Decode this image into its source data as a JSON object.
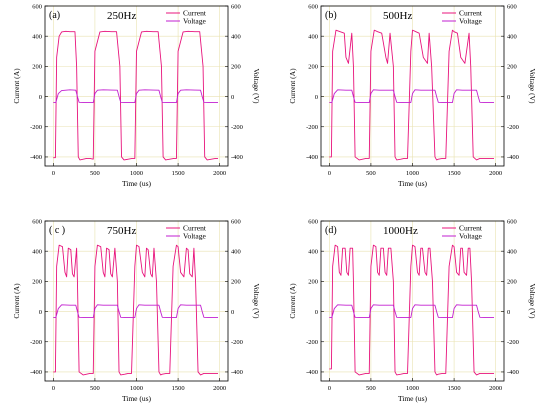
{
  "colors": {
    "current": "#e8147c",
    "voltage": "#c21fd0",
    "grid": "#e9e2b0",
    "axis": "#000000"
  },
  "chart_data": [
    {
      "type": "line",
      "panel_tag": "(a)",
      "frequency": "250Hz",
      "xlabel": "Time (us)",
      "ylabel": "Current (A)",
      "y2label": "Voltage (V)",
      "xlim": [
        -100,
        2100
      ],
      "ylim": [
        -460,
        600
      ],
      "y2lim": [
        -460,
        600
      ],
      "xticks": [
        "0",
        "500",
        "1000",
        "1500",
        "2000"
      ],
      "yticks": [
        "-400",
        "-200",
        "0",
        "200",
        "400",
        "600"
      ],
      "y2ticks": [
        "-400",
        "-200",
        "0",
        "200",
        "400",
        "600"
      ],
      "legend": "top-right",
      "grid": true,
      "series": [
        {
          "name": "Current",
          "x": [
            0,
            25,
            40,
            70,
            100,
            150,
            200,
            260,
            280,
            300,
            320,
            360,
            400,
            440,
            480,
            500,
            560,
            620,
            700,
            760,
            800,
            820,
            850,
            900,
            950,
            980,
            1000,
            1060,
            1120,
            1200,
            1260,
            1300,
            1320,
            1350,
            1400,
            1450,
            1480,
            1500,
            1560,
            1620,
            1700,
            1760,
            1800,
            1820,
            1850,
            1900,
            1950,
            1980
          ],
          "y": [
            -405,
            -405,
            260,
            400,
            428,
            432,
            430,
            430,
            200,
            -400,
            -420,
            -415,
            -410,
            -410,
            -415,
            300,
            428,
            432,
            430,
            430,
            200,
            -400,
            -420,
            -415,
            -410,
            -410,
            300,
            428,
            432,
            430,
            430,
            200,
            -400,
            -420,
            -415,
            -410,
            -410,
            300,
            428,
            432,
            430,
            430,
            200,
            -400,
            -420,
            -415,
            -410,
            -410
          ]
        },
        {
          "name": "Voltage",
          "x": [
            0,
            30,
            60,
            100,
            200,
            270,
            290,
            310,
            400,
            480,
            500,
            530,
            600,
            700,
            770,
            790,
            810,
            900,
            980,
            1000,
            1030,
            1100,
            1200,
            1270,
            1290,
            1310,
            1400,
            1480,
            1500,
            1530,
            1600,
            1700,
            1770,
            1790,
            1810,
            1900,
            1980
          ],
          "y": [
            -40,
            -40,
            20,
            40,
            45,
            42,
            0,
            -38,
            -40,
            -40,
            20,
            42,
            45,
            43,
            42,
            0,
            -38,
            -40,
            -40,
            20,
            42,
            45,
            43,
            42,
            0,
            -38,
            -40,
            -40,
            20,
            42,
            45,
            43,
            42,
            0,
            -38,
            -40,
            -40
          ]
        }
      ]
    },
    {
      "type": "line",
      "panel_tag": "(b)",
      "frequency": "500Hz",
      "xlabel": "Time (us)",
      "ylabel": "Current (A)",
      "y2label": "Voltage (V)",
      "xlim": [
        -100,
        2100
      ],
      "ylim": [
        -460,
        600
      ],
      "y2lim": [
        -460,
        600
      ],
      "xticks": [
        "0",
        "500",
        "1000",
        "1500",
        "2000"
      ],
      "yticks": [
        "-400",
        "-200",
        "0",
        "200",
        "400",
        "600"
      ],
      "y2ticks": [
        "-400",
        "-200",
        "0",
        "200",
        "400",
        "600"
      ],
      "legend": "top-right",
      "grid": true,
      "series": [
        {
          "name": "Current",
          "x": [
            0,
            25,
            40,
            80,
            130,
            180,
            200,
            230,
            270,
            290,
            310,
            360,
            400,
            440,
            480,
            500,
            540,
            580,
            630,
            680,
            700,
            730,
            770,
            790,
            810,
            860,
            900,
            940,
            980,
            1000,
            1040,
            1080,
            1130,
            1180,
            1200,
            1230,
            1270,
            1290,
            1310,
            1360,
            1400,
            1440,
            1480,
            1500,
            1540,
            1580,
            1630,
            1680,
            1700,
            1730,
            1770,
            1790,
            1810,
            1860,
            1900,
            1940,
            1980
          ],
          "y": [
            -400,
            -400,
            300,
            440,
            430,
            420,
            260,
            220,
            420,
            200,
            -400,
            -420,
            -415,
            -410,
            -410,
            300,
            440,
            430,
            420,
            260,
            220,
            420,
            200,
            -400,
            -420,
            -415,
            -410,
            -410,
            300,
            440,
            430,
            420,
            260,
            220,
            420,
            200,
            -400,
            -420,
            -415,
            -410,
            -410,
            300,
            440,
            430,
            420,
            260,
            220,
            420,
            200,
            -400,
            -420,
            -415,
            -410,
            -410,
            -410,
            -410,
            -410
          ]
        },
        {
          "name": "Voltage",
          "x": [
            0,
            30,
            60,
            100,
            200,
            270,
            290,
            310,
            400,
            480,
            500,
            530,
            600,
            700,
            770,
            790,
            810,
            900,
            980,
            1000,
            1030,
            1100,
            1200,
            1270,
            1290,
            1310,
            1400,
            1480,
            1500,
            1530,
            1600,
            1700,
            1770,
            1790,
            1810,
            1900,
            1980
          ],
          "y": [
            -40,
            -40,
            20,
            45,
            42,
            42,
            0,
            -38,
            -40,
            -40,
            20,
            45,
            42,
            42,
            42,
            0,
            -38,
            -40,
            -40,
            20,
            45,
            42,
            42,
            42,
            0,
            -38,
            -40,
            -40,
            20,
            45,
            42,
            42,
            42,
            0,
            -38,
            -40,
            -40
          ]
        }
      ]
    },
    {
      "type": "line",
      "panel_tag": "( c )",
      "frequency": "750Hz",
      "xlabel": "Time (us)",
      "ylabel": "Current (A)",
      "y2label": "Voltage (V)",
      "xlim": [
        -100,
        2100
      ],
      "ylim": [
        -460,
        600
      ],
      "y2lim": [
        -460,
        600
      ],
      "xticks": [
        "0",
        "500",
        "1000",
        "1500",
        "2000"
      ],
      "yticks": [
        "-400",
        "-200",
        "0",
        "200",
        "400",
        "600"
      ],
      "y2ticks": [
        "-400",
        "-200",
        "0",
        "200",
        "400",
        "600"
      ],
      "legend": "top-right",
      "grid": true,
      "series": [
        {
          "name": "Current",
          "x": [
            0,
            25,
            40,
            70,
            110,
            140,
            160,
            180,
            210,
            230,
            250,
            280,
            290,
            310,
            360,
            400,
            440,
            480,
            500,
            530,
            570,
            600,
            620,
            640,
            670,
            690,
            710,
            740,
            770,
            790,
            810,
            860,
            900,
            940,
            980,
            1000,
            1030,
            1070,
            1100,
            1120,
            1140,
            1170,
            1190,
            1210,
            1240,
            1270,
            1290,
            1310,
            1360,
            1400,
            1440,
            1480,
            1500,
            1530,
            1570,
            1600,
            1620,
            1640,
            1670,
            1690,
            1710,
            1740,
            1770,
            1790,
            1810,
            1860,
            1900,
            1940,
            1980
          ],
          "y": [
            -400,
            -400,
            300,
            440,
            430,
            260,
            230,
            420,
            410,
            250,
            230,
            420,
            200,
            -400,
            -420,
            -415,
            -410,
            -410,
            300,
            440,
            430,
            260,
            230,
            420,
            410,
            250,
            230,
            420,
            200,
            -400,
            -420,
            -415,
            -410,
            -410,
            300,
            440,
            430,
            260,
            230,
            420,
            410,
            250,
            230,
            420,
            200,
            -400,
            -420,
            -415,
            -410,
            -410,
            300,
            440,
            430,
            260,
            230,
            420,
            410,
            250,
            230,
            420,
            200,
            -400,
            -420,
            -415,
            -410,
            -410,
            -410,
            -410,
            -410
          ]
        },
        {
          "name": "Voltage",
          "x": [
            0,
            30,
            60,
            100,
            200,
            270,
            290,
            310,
            400,
            480,
            500,
            530,
            600,
            700,
            770,
            790,
            810,
            900,
            980,
            1000,
            1030,
            1100,
            1200,
            1270,
            1290,
            1310,
            1400,
            1480,
            1500,
            1530,
            1600,
            1700,
            1770,
            1790,
            1810,
            1900,
            1980
          ],
          "y": [
            -40,
            -40,
            20,
            45,
            42,
            42,
            0,
            -38,
            -40,
            -40,
            20,
            45,
            42,
            42,
            42,
            0,
            -38,
            -40,
            -40,
            20,
            45,
            42,
            42,
            42,
            0,
            -38,
            -40,
            -40,
            20,
            45,
            42,
            42,
            42,
            0,
            -38,
            -40,
            -40
          ]
        }
      ]
    },
    {
      "type": "line",
      "panel_tag": "(d)",
      "frequency": "1000Hz",
      "xlabel": "Time (us)",
      "ylabel": "Current (A)",
      "y2label": "Voltage (V)",
      "xlim": [
        -100,
        2100
      ],
      "ylim": [
        -460,
        600
      ],
      "y2lim": [
        -460,
        600
      ],
      "xticks": [
        "0",
        "500",
        "1000",
        "1500",
        "2000"
      ],
      "yticks": [
        "-400",
        "-200",
        "0",
        "200",
        "400",
        "600"
      ],
      "y2ticks": [
        "-400",
        "-200",
        "0",
        "200",
        "400",
        "600"
      ],
      "legend": "top-right",
      "grid": true,
      "series": [
        {
          "name": "Current",
          "x": [
            0,
            25,
            40,
            70,
            100,
            120,
            140,
            160,
            190,
            210,
            230,
            250,
            280,
            290,
            310,
            360,
            400,
            440,
            480,
            500,
            530,
            560,
            580,
            600,
            620,
            650,
            670,
            690,
            710,
            740,
            770,
            790,
            810,
            860,
            900,
            940,
            980,
            1000,
            1030,
            1060,
            1080,
            1100,
            1120,
            1150,
            1170,
            1190,
            1210,
            1240,
            1270,
            1290,
            1310,
            1360,
            1400,
            1440,
            1480,
            1500,
            1530,
            1560,
            1580,
            1600,
            1620,
            1650,
            1670,
            1690,
            1710,
            1740,
            1770,
            1790,
            1810,
            1860,
            1900,
            1940,
            1980
          ],
          "y": [
            -380,
            -380,
            300,
            440,
            430,
            260,
            240,
            420,
            420,
            260,
            240,
            420,
            420,
            200,
            -400,
            -420,
            -415,
            -410,
            -410,
            300,
            440,
            430,
            260,
            240,
            420,
            420,
            260,
            240,
            420,
            420,
            200,
            -400,
            -420,
            -415,
            -410,
            -410,
            300,
            440,
            430,
            260,
            240,
            420,
            420,
            260,
            240,
            420,
            420,
            200,
            -400,
            -420,
            -415,
            -410,
            -410,
            300,
            440,
            430,
            260,
            240,
            420,
            420,
            260,
            240,
            420,
            420,
            200,
            -400,
            -420,
            -415,
            -410,
            -410,
            -410,
            -410,
            -410
          ]
        },
        {
          "name": "Voltage",
          "x": [
            0,
            30,
            60,
            100,
            200,
            270,
            290,
            310,
            400,
            480,
            500,
            530,
            600,
            700,
            770,
            790,
            810,
            900,
            980,
            1000,
            1030,
            1100,
            1200,
            1270,
            1290,
            1310,
            1400,
            1480,
            1500,
            1530,
            1600,
            1700,
            1770,
            1790,
            1810,
            1900,
            1980
          ],
          "y": [
            -40,
            -40,
            20,
            45,
            42,
            42,
            0,
            -38,
            -40,
            -40,
            20,
            45,
            42,
            42,
            42,
            0,
            -38,
            -40,
            -40,
            20,
            45,
            42,
            42,
            42,
            0,
            -38,
            -40,
            -40,
            20,
            45,
            42,
            42,
            42,
            0,
            -38,
            -40,
            -40
          ]
        }
      ]
    }
  ]
}
